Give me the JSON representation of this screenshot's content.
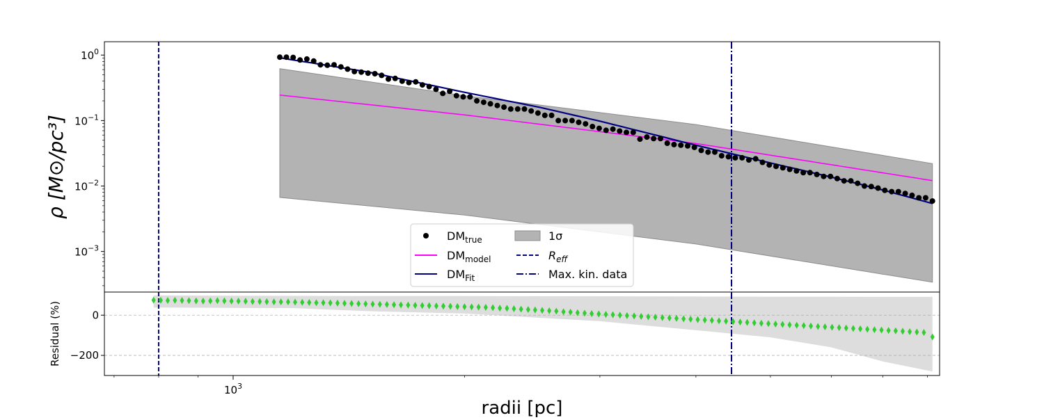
{
  "chart_data": [
    {
      "panel": "density",
      "type": "scatter",
      "x_scale": "log",
      "y_scale": "log",
      "xlim": [
        680,
        8300
      ],
      "ylim": [
        0.00024,
        1.6
      ],
      "ylabel": "ρ [M⊙/pc³]",
      "y_ticks": [
        {
          "value": 1,
          "label": "10^0"
        },
        {
          "value": 0.1,
          "label": "10^-1"
        },
        {
          "value": 0.01,
          "label": "10^-2"
        },
        {
          "value": 0.001,
          "label": "10^-3"
        }
      ],
      "series": [
        {
          "name": "DM_true",
          "kind": "points",
          "color": "#000000",
          "x": [
            1150,
            1173,
            1197,
            1222,
            1247,
            1273,
            1299,
            1326,
            1353,
            1381,
            1409,
            1438,
            1468,
            1498,
            1529,
            1560,
            1592,
            1625,
            1659,
            1693,
            1728,
            1763,
            1799,
            1836,
            1874,
            1913,
            1952,
            1992,
            2033,
            2075,
            2118,
            2161,
            2206,
            2251,
            2297,
            2345,
            2393,
            2442,
            2492,
            2544,
            2596,
            2649,
            2704,
            2760,
            2816,
            2874,
            2934,
            2994,
            3056,
            3119,
            3183,
            3248,
            3315,
            3383,
            3453,
            3524,
            3597,
            3671,
            3746,
            3823,
            3902,
            3982,
            4064,
            4148,
            4233,
            4320,
            4409,
            4500,
            4593,
            4687,
            4784,
            4882,
            4983,
            5085,
            5190,
            5297,
            5406,
            5517,
            5630,
            5746,
            5865,
            5985,
            6108,
            6234,
            6362,
            6493,
            6627,
            6763,
            6902,
            7044,
            7189,
            7337,
            7488,
            7642,
            7800,
            7960,
            8124
          ],
          "y": [
            0.93,
            0.93,
            0.92,
            0.84,
            0.87,
            0.81,
            0.71,
            0.7,
            0.71,
            0.66,
            0.61,
            0.56,
            0.55,
            0.53,
            0.52,
            0.49,
            0.43,
            0.44,
            0.4,
            0.38,
            0.39,
            0.35,
            0.33,
            0.3,
            0.26,
            0.28,
            0.24,
            0.23,
            0.23,
            0.2,
            0.19,
            0.18,
            0.17,
            0.16,
            0.15,
            0.15,
            0.15,
            0.14,
            0.13,
            0.12,
            0.12,
            0.1,
            0.1,
            0.1,
            0.094,
            0.089,
            0.081,
            0.076,
            0.071,
            0.074,
            0.069,
            0.066,
            0.066,
            0.052,
            0.056,
            0.053,
            0.053,
            0.045,
            0.043,
            0.042,
            0.041,
            0.039,
            0.035,
            0.033,
            0.033,
            0.029,
            0.028,
            0.027,
            0.027,
            0.025,
            0.026,
            0.023,
            0.021,
            0.02,
            0.019,
            0.018,
            0.017,
            0.016,
            0.016,
            0.015,
            0.014,
            0.014,
            0.013,
            0.012,
            0.012,
            0.011,
            0.01,
            0.0098,
            0.0093,
            0.0086,
            0.0082,
            0.0082,
            0.0077,
            0.0072,
            0.0066,
            0.0066,
            0.0059
          ]
        },
        {
          "name": "DM_model",
          "kind": "line",
          "color": "#ff00ff",
          "x": [
            1150,
            2000,
            4000,
            8124
          ],
          "y": [
            0.245,
            0.122,
            0.0446,
            0.0121
          ]
        },
        {
          "name": "DM_Fit",
          "kind": "line",
          "color": "#000080",
          "x": [
            1150,
            1500,
            2000,
            2500,
            3000,
            4000,
            5000,
            6000,
            7000,
            8124
          ],
          "y": [
            0.91,
            0.55,
            0.27,
            0.16,
            0.098,
            0.042,
            0.0225,
            0.0137,
            0.0087,
            0.0054
          ]
        }
      ],
      "band": {
        "name": "1σ",
        "color": "#b3b3b3",
        "x": [
          1150,
          2000,
          4000,
          8124
        ],
        "upper": [
          0.62,
          0.24,
          0.087,
          0.022
        ],
        "lower": [
          0.0067,
          0.0036,
          0.0013,
          0.00034
        ]
      },
      "vlines": [
        {
          "name": "R_eff",
          "x": 800,
          "color": "#000080",
          "style": "dashed"
        },
        {
          "name": "Max. kin. data",
          "x": 4450,
          "color": "#000080",
          "style": "dashdot"
        }
      ],
      "legend": {
        "position": "lower center",
        "entries": [
          {
            "key": "true",
            "text": "DM",
            "sub": "true",
            "marker": "point",
            "color": "#000000"
          },
          {
            "key": "sigma",
            "text": "1σ",
            "marker": "patch",
            "color": "#b3b3b3"
          },
          {
            "key": "model",
            "text": "DM",
            "sub": "model",
            "marker": "line",
            "color": "#ff00ff"
          },
          {
            "key": "reff",
            "text": "R_eff",
            "marker": "dashed",
            "color": "#000080"
          },
          {
            "key": "fit",
            "text": "DM",
            "sub": "Fit",
            "marker": "line",
            "color": "#000080"
          },
          {
            "key": "maxkin",
            "text": "Max. kin. data",
            "marker": "dashdot",
            "color": "#000080"
          }
        ]
      }
    },
    {
      "panel": "residual",
      "type": "scatter",
      "x_scale": "log",
      "xlim": [
        680,
        8300
      ],
      "ylim": [
        -300,
        115
      ],
      "xlabel": "radii [pc]",
      "ylabel": "Residual (%)",
      "x_ticks": [
        {
          "value": 1000,
          "label": "10^3"
        }
      ],
      "y_ticks": [
        {
          "value": 0,
          "label": "0"
        },
        {
          "value": -200,
          "label": "−200"
        }
      ],
      "gridlines_y": [
        0,
        -200
      ],
      "series": [
        {
          "name": "residual",
          "kind": "diamonds",
          "color": "#32cd32",
          "x": [
            788,
            805,
            822,
            840,
            858,
            876,
            895,
            914,
            934,
            954,
            974,
            995,
            1016,
            1038,
            1060,
            1083,
            1106,
            1130,
            1154,
            1179,
            1204,
            1230,
            1256,
            1283,
            1310,
            1338,
            1367,
            1396,
            1426,
            1456,
            1487,
            1519,
            1552,
            1585,
            1619,
            1653,
            1689,
            1725,
            1762,
            1799,
            1838,
            1877,
            1917,
            1958,
            2000,
            2043,
            2086,
            2131,
            2177,
            2223,
            2271,
            2319,
            2369,
            2420,
            2471,
            2524,
            2578,
            2633,
            2690,
            2747,
            2806,
            2866,
            2927,
            2990,
            3054,
            3119,
            3186,
            3254,
            3324,
            3395,
            3468,
            3542,
            3618,
            3695,
            3774,
            3855,
            3937,
            4022,
            4108,
            4196,
            4286,
            4377,
            4471,
            4567,
            4664,
            4764,
            4866,
            4970,
            5077,
            5185,
            5296,
            5410,
            5525,
            5644,
            5765,
            5888,
            6014,
            6143,
            6274,
            6408,
            6545,
            6685,
            6828,
            6974,
            7123,
            7276,
            7431,
            7590,
            7753,
            7918,
            8124
          ],
          "y": [
            75,
            74,
            73,
            74,
            73,
            72,
            71,
            70,
            71,
            72,
            71,
            70,
            70,
            69,
            68,
            68,
            67,
            66,
            66,
            66,
            65,
            64,
            63,
            62,
            62,
            61,
            60,
            59,
            58,
            57,
            56,
            55,
            54,
            53,
            52,
            51,
            50,
            49,
            48,
            47,
            46,
            45,
            44,
            43,
            42,
            41,
            40,
            39,
            37,
            35,
            34,
            32,
            30,
            28,
            26,
            24,
            22,
            20,
            17,
            15,
            12,
            10,
            8,
            6,
            4,
            2,
            0,
            -2,
            -4,
            -6,
            -8,
            -10,
            -12,
            -14,
            -16,
            -18,
            -20,
            -22,
            -24,
            -26,
            -28,
            -30,
            -32,
            -34,
            -36,
            -38,
            -40,
            -42,
            -44,
            -46,
            -48,
            -50,
            -52,
            -54,
            -56,
            -58,
            -60,
            -62,
            -64,
            -66,
            -68,
            -70,
            -72,
            -74,
            -76,
            -78,
            -80,
            -82,
            -84,
            -86,
            -108
          ]
        }
      ],
      "band": {
        "color": "#dddddd",
        "x": [
          788,
          1200,
          1500,
          2000,
          3000,
          4000,
          5000,
          6000,
          7000,
          8124
        ],
        "upper": [
          98,
          96,
          95,
          95,
          94,
          93,
          92,
          92,
          91,
          91
        ],
        "lower": [
          38,
          35,
          20,
          8,
          -30,
          -75,
          -110,
          -160,
          -230,
          -280
        ]
      }
    }
  ]
}
